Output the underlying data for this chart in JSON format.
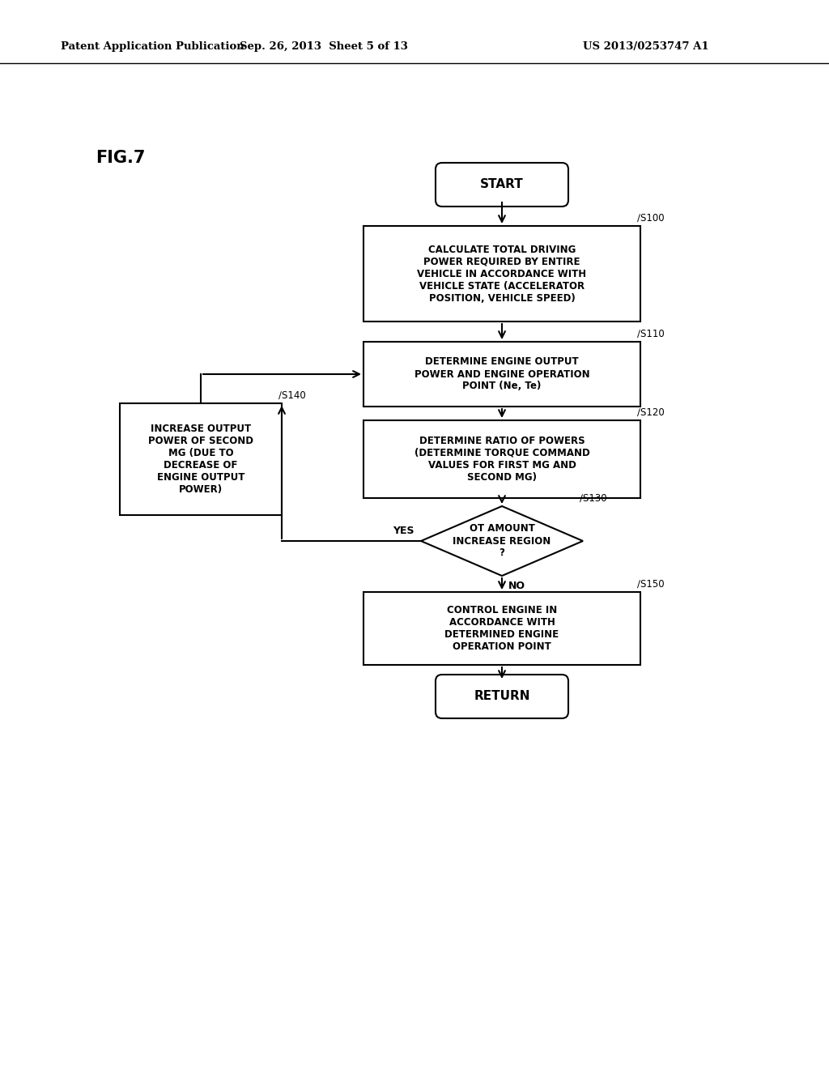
{
  "bg_color": "#ffffff",
  "text_color": "#000000",
  "header_left": "Patent Application Publication",
  "header_mid": "Sep. 26, 2013  Sheet 5 of 13",
  "header_right": "US 2013/0253747 A1",
  "fig_label": "FIG.7",
  "start_label": "START",
  "return_label": "RETURN",
  "s100_text": "CALCULATE TOTAL DRIVING\nPOWER REQUIRED BY ENTIRE\nVEHICLE IN ACCORDANCE WITH\nVEHICLE STATE (ACCELERATOR\nPOSITION, VEHICLE SPEED)",
  "s100_step": "S100",
  "s110_text": "DETERMINE ENGINE OUTPUT\nPOWER AND ENGINE OPERATION\nPOINT (Ne, Te)",
  "s110_step": "S110",
  "s120_text": "DETERMINE RATIO OF POWERS\n(DETERMINE TORQUE COMMAND\nVALUES FOR FIRST MG AND\nSECOND MG)",
  "s120_step": "S120",
  "s130_text": "OT AMOUNT\nINCREASE REGION\n?",
  "s130_step": "S130",
  "s140_text": "INCREASE OUTPUT\nPOWER OF SECOND\nMG (DUE TO\nDECREASE OF\nENGINE OUTPUT\nPOWER)",
  "s140_step": "S140",
  "s150_text": "CONTROL ENGINE IN\nACCORDANCE WITH\nDETERMINED ENGINE\nOPERATION POINT",
  "s150_step": "S150",
  "yes_label": "YES",
  "no_label": "NO"
}
